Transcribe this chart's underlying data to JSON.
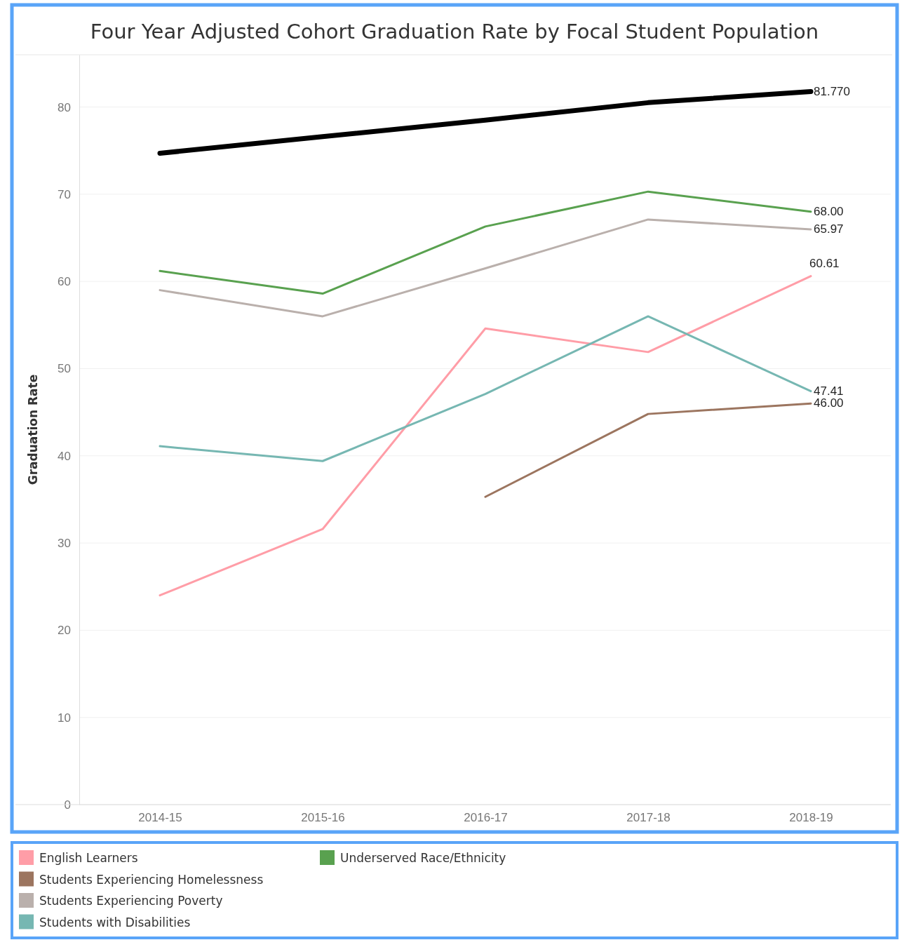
{
  "chart_data": {
    "type": "line",
    "title": "Four Year Adjusted Cohort Graduation Rate by Focal Student Population",
    "ylabel": "Graduation Rate",
    "categories": [
      "2014-15",
      "2015-16",
      "2016-17",
      "2017-18",
      "2018-19"
    ],
    "ylim": [
      0,
      86
    ],
    "yticks": [
      0,
      10,
      20,
      30,
      40,
      50,
      60,
      70,
      80
    ],
    "grid": "y",
    "legend": "bottom",
    "marker": "none",
    "line_style": "solid",
    "series": [
      {
        "color": "#000000",
        "values": [
          74.7,
          76.6,
          78.5,
          80.5,
          81.77
        ],
        "value_labels": [
          null,
          null,
          null,
          null,
          "81.770"
        ]
      },
      {
        "name": "English Learners",
        "color": "#ff9da7",
        "values": [
          24.0,
          31.6,
          54.6,
          51.9,
          60.61
        ],
        "value_labels": [
          null,
          null,
          null,
          null,
          "60.61"
        ]
      },
      {
        "name": "Students Experiencing Homelessness",
        "color": "#9c755f",
        "values": [
          null,
          null,
          35.3,
          44.8,
          46.0
        ],
        "value_labels": [
          null,
          null,
          null,
          null,
          "46.00"
        ]
      },
      {
        "name": "Students Experiencing Poverty",
        "color": "#bab0ac",
        "values": [
          59.0,
          56.0,
          61.5,
          67.1,
          65.97
        ],
        "value_labels": [
          null,
          null,
          null,
          null,
          "65.97"
        ]
      },
      {
        "name": "Students with Disabilities",
        "color": "#76b7b2",
        "values": [
          41.1,
          39.4,
          47.1,
          56.0,
          47.41
        ],
        "value_labels": [
          null,
          null,
          null,
          null,
          "47.41"
        ]
      },
      {
        "name": "Underserved Race/Ethnicity",
        "color": "#59a14f",
        "values": [
          61.2,
          58.6,
          66.3,
          70.3,
          68.0
        ],
        "value_labels": [
          null,
          null,
          null,
          null,
          "68.00"
        ]
      }
    ]
  }
}
